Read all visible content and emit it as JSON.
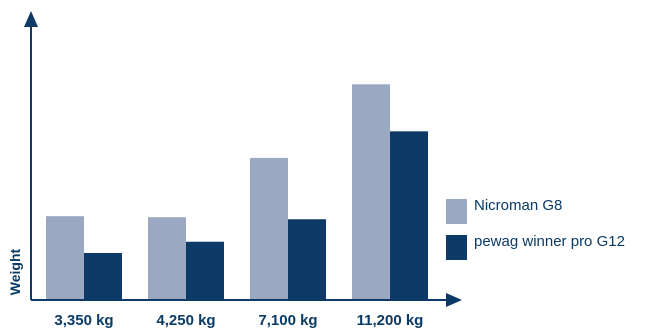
{
  "chart_data": {
    "type": "bar",
    "ylabel": "Weight",
    "categories": [
      "3,350 kg",
      "4,250 kg",
      "7,100 kg",
      "11,200 kg"
    ],
    "series": [
      {
        "name": "Nicroman G8",
        "values": [
          82,
          81,
          139,
          211
        ],
        "color": "#9aa8c1"
      },
      {
        "name": "pewag winner pro G12",
        "values": [
          46,
          57,
          79,
          165
        ],
        "color": "#0d3a66"
      }
    ],
    "ylim": [
      0,
      270
    ],
    "grid": false,
    "legend": "right",
    "axis_color": "#0d3a66"
  }
}
